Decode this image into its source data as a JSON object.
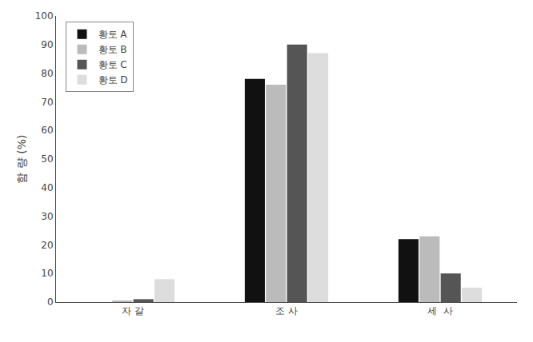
{
  "chart_data": {
    "type": "bar",
    "categories": [
      "자 갈",
      "조 사",
      "세  사"
    ],
    "series": [
      {
        "name": "황토 A",
        "color": "#111111",
        "values": [
          0.0,
          78.0,
          22.0
        ]
      },
      {
        "name": "황토 B",
        "color": "#bbbbbb",
        "values": [
          0.5,
          76.0,
          23.0
        ]
      },
      {
        "name": "황토 C",
        "color": "#555555",
        "values": [
          1.0,
          90.0,
          10.0
        ]
      },
      {
        "name": "황토 D",
        "color": "#dddddd",
        "values": [
          8.0,
          87.0,
          5.0
        ]
      }
    ],
    "ylabel": "함 량 (%)",
    "ylim": [
      0,
      100
    ],
    "yticks": [
      0,
      10,
      20,
      30,
      40,
      50,
      60,
      70,
      80,
      90,
      100
    ],
    "grid": false,
    "legend": "upper left"
  }
}
